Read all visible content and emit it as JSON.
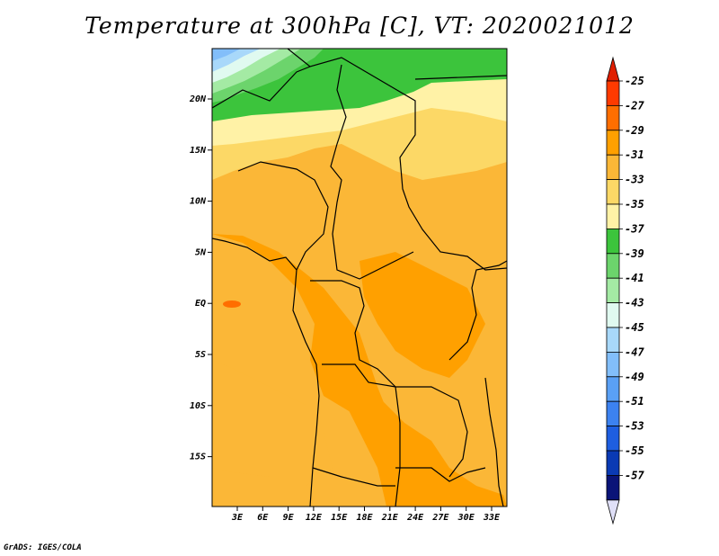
{
  "title": "Temperature at 300hPa [C], VT: 2020021012",
  "footer": "GrADS: IGES/COLA",
  "map": {
    "lat_labels": [
      "20N",
      "15N",
      "10N",
      "5N",
      "EQ",
      "5S",
      "10S",
      "15S"
    ],
    "lon_labels": [
      "3E",
      "6E",
      "9E",
      "12E",
      "15E",
      "18E",
      "21E",
      "24E",
      "27E",
      "30E",
      "33E"
    ]
  },
  "colorbar": {
    "labels": [
      "-25",
      "-27",
      "-29",
      "-31",
      "-33",
      "-35",
      "-37",
      "-39",
      "-41",
      "-43",
      "-45",
      "-47",
      "-49",
      "-51",
      "-53",
      "-55",
      "-57"
    ],
    "colors": [
      "#ff3a00",
      "#ff6e00",
      "#ffa000",
      "#fbb737",
      "#fcd866",
      "#fff2a6",
      "#3cc43c",
      "#6cd46c",
      "#a4eaa4",
      "#e0faf0",
      "#a8d8fa",
      "#82befa",
      "#5aa0f5",
      "#3c82f0",
      "#1e5ee0",
      "#0a3ab4",
      "#0a1478"
    ],
    "top_color": "#e01e00",
    "bottom_color": "#e0e0f8"
  }
}
